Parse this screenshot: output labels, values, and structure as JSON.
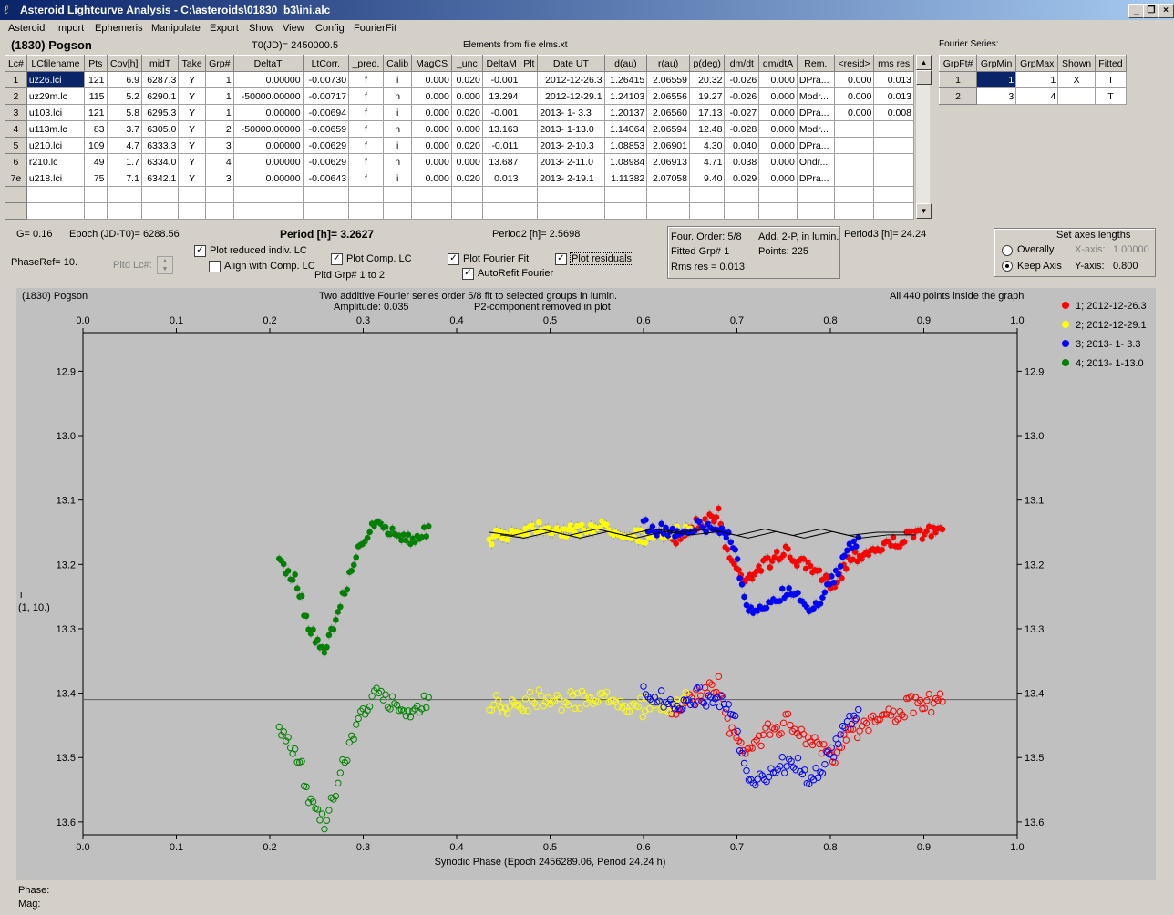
{
  "window": {
    "title": "Asteroid Lightcurve Analysis - C:\\asteroids\\01830_b3\\ini.alc",
    "icon": "app-icon"
  },
  "menu": [
    "Asteroid",
    "Import",
    "Ephemeris",
    "Manipulate",
    "Export",
    "Show",
    "View",
    "Config",
    "FourierFit"
  ],
  "header": {
    "asteroid": "(1830) Pogson",
    "t0": "T0(JD)= 2450000.5",
    "elements": "Elements from file elms.xt"
  },
  "lc_table": {
    "columns": [
      "Lc#",
      "LCfilename",
      "Pts",
      "Cov[h]",
      "midT",
      "Take",
      "Grp#",
      "DeltaT",
      "LtCorr.",
      "_pred.",
      "Calib",
      "MagCS",
      "_unc",
      "DeltaM",
      "Plt",
      "Date UT",
      "d(au)",
      "r(au)",
      "p(deg)",
      "dm/dt",
      "dm/dtA",
      "Rem.",
      "<resid>",
      "rms res"
    ],
    "rows": [
      [
        "1",
        "uz26.lci",
        "121",
        "6.9",
        "6287.3",
        "Y",
        "1",
        "0.00000",
        "-0.00730",
        "f",
        "i",
        "0.000",
        "0.020",
        "-0.001",
        "",
        "2012-12-26.3",
        "1.26415",
        "2.06559",
        "20.32",
        "-0.026",
        "0.000",
        "DPra...",
        "0.000",
        "0.013"
      ],
      [
        "2",
        "uz29m.lc",
        "115",
        "5.2",
        "6290.1",
        "Y",
        "1",
        "-50000.00000",
        "-0.00717",
        "f",
        "n",
        "0.000",
        "0.000",
        "13.294",
        "",
        "2012-12-29.1",
        "1.24103",
        "2.06556",
        "19.27",
        "-0.026",
        "0.000",
        "Modr...",
        "0.000",
        "0.013"
      ],
      [
        "3",
        "u103.lci",
        "121",
        "5.8",
        "6295.3",
        "Y",
        "1",
        "0.00000",
        "-0.00694",
        "f",
        "i",
        "0.000",
        "0.020",
        "-0.001",
        "",
        "2013- 1- 3.3",
        "1.20137",
        "2.06560",
        "17.13",
        "-0.027",
        "0.000",
        "DPra...",
        "0.000",
        "0.008"
      ],
      [
        "4",
        "u113m.lc",
        "83",
        "3.7",
        "6305.0",
        "Y",
        "2",
        "-50000.00000",
        "-0.00659",
        "f",
        "n",
        "0.000",
        "0.000",
        "13.163",
        "",
        "2013- 1-13.0",
        "1.14064",
        "2.06594",
        "12.48",
        "-0.028",
        "0.000",
        "Modr...",
        "",
        ""
      ],
      [
        "5",
        "u210.lci",
        "109",
        "4.7",
        "6333.3",
        "Y",
        "3",
        "0.00000",
        "-0.00629",
        "f",
        "i",
        "0.000",
        "0.020",
        "-0.011",
        "",
        "2013- 2-10.3",
        "1.08853",
        "2.06901",
        "4.30",
        "0.040",
        "0.000",
        "DPra...",
        "",
        ""
      ],
      [
        "6",
        "r210.lc",
        "49",
        "1.7",
        "6334.0",
        "Y",
        "4",
        "0.00000",
        "-0.00629",
        "f",
        "n",
        "0.000",
        "0.000",
        "13.687",
        "",
        "2013- 2-11.0",
        "1.08984",
        "2.06913",
        "4.71",
        "0.038",
        "0.000",
        "Ondr...",
        "",
        ""
      ],
      [
        "7e",
        "u218.lci",
        "75",
        "7.1",
        "6342.1",
        "Y",
        "3",
        "0.00000",
        "-0.00643",
        "f",
        "i",
        "0.000",
        "0.020",
        "0.013",
        "",
        "2013- 2-19.1",
        "1.11382",
        "2.07058",
        "9.40",
        "0.029",
        "0.000",
        "DPra...",
        "",
        ""
      ]
    ]
  },
  "fourier_table": {
    "title": "Fourier Series:",
    "columns": [
      "GrpFt#",
      "GrpMin",
      "GrpMax",
      "Shown",
      "Fitted"
    ],
    "rows": [
      [
        "1",
        "1",
        "1",
        "X",
        "T"
      ],
      [
        "2",
        "3",
        "4",
        "",
        "T"
      ]
    ]
  },
  "controls": {
    "g": "G= 0.16",
    "epoch": "Epoch (JD-T0)= 6288.56",
    "period": "Period [h]= 3.2627",
    "period2": "Period2 [h]= 2.5698",
    "period3": "Period3 [h]= 24.24",
    "phaseref": "PhaseRef= 10.",
    "pltd_lc": "Pltd Lc#:",
    "plot_reduced": "Plot reduced indiv. LC",
    "align": "Align with Comp. LC",
    "plot_comp": "Plot Comp. LC",
    "pltd_grp": "Pltd Grp#  1   to   2",
    "plot_fourier": "Plot Fourier Fit",
    "autorefit": "AutoRefit Fourier",
    "plot_residuals": "Plot residuals",
    "four_order": "Four. Order:  5/8",
    "add2p": "Add. 2-P, in lumin.",
    "fitted_grp": "Fitted Grp# 1",
    "points": "Points: 225",
    "rms": "Rms res      = 0.013",
    "axes_title": "Set axes lengths",
    "overally": "Overally",
    "keep_axis": "Keep Axis",
    "xaxis_label": "X-axis:",
    "xaxis_val": "1.00000",
    "yaxis_label": "Y-axis:",
    "yaxis_val": "0.800"
  },
  "plot_header": {
    "left": "(1830) Pogson",
    "center1": "Two additive Fourier series order 5/8 fit to selected groups in lumin.",
    "center2a": "Amplitude: 0.035",
    "center2b": "P2-component removed in plot",
    "right": "All 440 points inside the graph",
    "ylabel1": "i",
    "ylabel2": "(1, 10.)"
  },
  "status": {
    "phase": "Phase:",
    "mag": "Mag:"
  },
  "chart_data": {
    "type": "scatter",
    "xlabel": "Synodic Phase (Epoch 2456289.06, Period 24.24 h)",
    "ylabel": "i",
    "xlim": [
      0.0,
      1.0
    ],
    "ylim": [
      12.84,
      13.62
    ],
    "y_reversed": true,
    "x_ticks": [
      "0.0",
      "0.1",
      "0.2",
      "0.3",
      "0.4",
      "0.5",
      "0.6",
      "0.7",
      "0.8",
      "0.9",
      "1.0"
    ],
    "y_ticks": [
      "12.9",
      "13.0",
      "13.1",
      "13.2",
      "13.3",
      "13.4",
      "13.5",
      "13.6"
    ],
    "reference_line": 13.41,
    "legend": [
      {
        "name": "1; 2012-12-26.3",
        "color": "#ff0000"
      },
      {
        "name": "2; 2012-12-29.1",
        "color": "#ffff00"
      },
      {
        "name": "3; 2013- 1- 3.3",
        "color": "#0000ff"
      },
      {
        "name": "4; 2013- 1-13.0",
        "color": "#008000"
      }
    ],
    "series": [
      {
        "name": "1; 2012-12-26.3",
        "color": "#ff0000",
        "segments": [
          [
            [
              0.63,
              13.17
            ],
            [
              0.65,
              13.14
            ],
            [
              0.67,
              13.13
            ],
            [
              0.68,
              13.12
            ],
            [
              0.69,
              13.18
            ],
            [
              0.7,
              13.21
            ],
            [
              0.71,
              13.22
            ],
            [
              0.73,
              13.2
            ],
            [
              0.75,
              13.18
            ],
            [
              0.76,
              13.19
            ],
            [
              0.78,
              13.21
            ],
            [
              0.8,
              13.23
            ],
            [
              0.81,
              13.22
            ],
            [
              0.82,
              13.19
            ],
            [
              0.84,
              13.18
            ],
            [
              0.86,
              13.17
            ],
            [
              0.88,
              13.16
            ],
            [
              0.9,
              13.15
            ],
            [
              0.92,
              13.15
            ]
          ]
        ]
      },
      {
        "name": "2; 2012-12-29.1",
        "color": "#ffff00",
        "segments": [
          [
            [
              0.435,
              13.16
            ],
            [
              0.46,
              13.15
            ],
            [
              0.49,
              13.14
            ],
            [
              0.52,
              13.15
            ],
            [
              0.55,
              13.14
            ],
            [
              0.58,
              13.15
            ],
            [
              0.61,
              13.16
            ],
            [
              0.63,
              13.15
            ],
            [
              0.65,
              13.15
            ]
          ]
        ]
      },
      {
        "name": "3; 2013- 1- 3.3",
        "color": "#0000ff",
        "segments": [
          [
            [
              0.6,
              13.14
            ],
            [
              0.63,
              13.15
            ],
            [
              0.66,
              13.14
            ],
            [
              0.69,
              13.15
            ],
            [
              0.7,
              13.19
            ],
            [
              0.71,
              13.27
            ],
            [
              0.72,
              13.28
            ],
            [
              0.74,
              13.25
            ],
            [
              0.76,
              13.24
            ],
            [
              0.78,
              13.27
            ],
            [
              0.8,
              13.23
            ],
            [
              0.81,
              13.21
            ],
            [
              0.82,
              13.17
            ],
            [
              0.83,
              13.16
            ]
          ]
        ]
      },
      {
        "name": "4; 2013- 1-13.0",
        "color": "#008000",
        "segments": [
          [
            [
              0.21,
              13.2
            ],
            [
              0.23,
              13.23
            ],
            [
              0.24,
              13.29
            ],
            [
              0.25,
              13.32
            ],
            [
              0.26,
              13.33
            ],
            [
              0.27,
              13.29
            ],
            [
              0.28,
              13.24
            ],
            [
              0.29,
              13.2
            ],
            [
              0.3,
              13.16
            ],
            [
              0.31,
              13.14
            ],
            [
              0.33,
              13.15
            ],
            [
              0.35,
              13.16
            ],
            [
              0.37,
              13.15
            ]
          ]
        ]
      }
    ],
    "residual_offset": 0.265,
    "fourier_fit": [
      [
        0.435,
        13.15
      ],
      [
        0.46,
        13.155
      ],
      [
        0.49,
        13.145
      ],
      [
        0.52,
        13.155
      ],
      [
        0.55,
        13.145
      ],
      [
        0.58,
        13.155
      ],
      [
        0.61,
        13.145
      ],
      [
        0.64,
        13.15
      ],
      [
        0.67,
        13.145
      ],
      [
        0.7,
        13.155
      ],
      [
        0.73,
        13.145
      ],
      [
        0.76,
        13.155
      ],
      [
        0.79,
        13.145
      ],
      [
        0.82,
        13.155
      ],
      [
        0.85,
        13.15
      ],
      [
        0.88,
        13.15
      ]
    ]
  }
}
